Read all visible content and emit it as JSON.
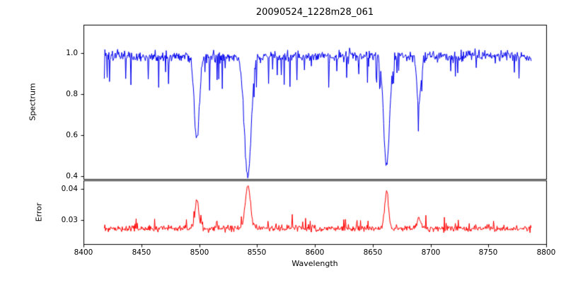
{
  "figure": {
    "background": "#ffffff",
    "axes_color": "#000000"
  },
  "chart_data": [
    {
      "type": "line",
      "panel": "spectrum",
      "title": "20090524_1228m28_061",
      "xlabel": "Wavelength",
      "ylabel": "Spectrum",
      "color": "#0000ee",
      "grid": false,
      "legend": "none",
      "xlim": [
        8400,
        8800
      ],
      "ylim": [
        0.386,
        1.138
      ],
      "xticks": [
        {
          "value": 8400,
          "label": "8400"
        },
        {
          "value": 8450,
          "label": "8450"
        },
        {
          "value": 8500,
          "label": "8500"
        },
        {
          "value": 8550,
          "label": "8550"
        },
        {
          "value": 8600,
          "label": "8600"
        },
        {
          "value": 8650,
          "label": "8650"
        },
        {
          "value": 8700,
          "label": "8700"
        },
        {
          "value": 8750,
          "label": "8750"
        },
        {
          "value": 8800,
          "label": "8800"
        }
      ],
      "yticks": [
        {
          "value": 0.4,
          "label": "0.4"
        },
        {
          "value": 0.6,
          "label": "0.6"
        },
        {
          "value": 0.8,
          "label": "0.8"
        },
        {
          "value": 1.0,
          "label": "1.0"
        }
      ],
      "x_data_range": [
        8418,
        8787
      ],
      "sampling_step": 0.5,
      "continuum_level": 0.985,
      "noise_sigma": 0.013,
      "downward_spike_probability": 0.1,
      "downward_spike_max": 0.13,
      "absorption_lines": [
        {
          "center": 8498,
          "depth": 0.41,
          "sigma": 2.2
        },
        {
          "center": 8542,
          "depth": 0.58,
          "sigma": 3.0
        },
        {
          "center": 8662,
          "depth": 0.54,
          "sigma": 2.5
        },
        {
          "center": 8690,
          "depth": 0.23,
          "sigma": 1.8
        }
      ],
      "seed": 20090524
    },
    {
      "type": "line",
      "panel": "error",
      "ylabel": "Error",
      "color": "#ff0000",
      "grid": false,
      "legend": "none",
      "xlim": [
        8400,
        8800
      ],
      "ylim": [
        0.0223,
        0.0427
      ],
      "yticks": [
        {
          "value": 0.03,
          "label": "0.03"
        },
        {
          "value": 0.04,
          "label": "0.04"
        }
      ],
      "x_data_range": [
        8418,
        8787
      ],
      "sampling_step": 0.5,
      "baseline_level": 0.0273,
      "noise_sigma": 0.0005,
      "upward_spike_probability": 0.07,
      "upward_spike_max": 0.003,
      "error_peaks": [
        {
          "center": 8498,
          "height": 0.0095,
          "sigma": 1.6
        },
        {
          "center": 8542,
          "height": 0.0135,
          "sigma": 2.2
        },
        {
          "center": 8662,
          "height": 0.012,
          "sigma": 1.6
        },
        {
          "center": 8690,
          "height": 0.0035,
          "sigma": 1.3
        }
      ],
      "seed": 1228
    }
  ]
}
